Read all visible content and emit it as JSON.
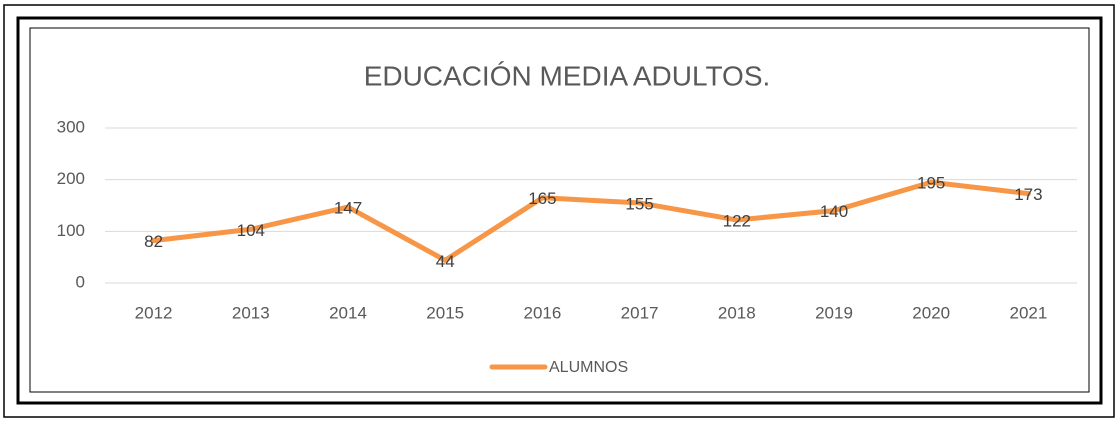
{
  "chart_data": {
    "type": "line",
    "title": "EDUCACIÓN MEDIA ADULTOS.",
    "categories": [
      "2012",
      "2013",
      "2014",
      "2015",
      "2016",
      "2017",
      "2018",
      "2019",
      "2020",
      "2021"
    ],
    "series": [
      {
        "name": "ALUMNOS",
        "color": "#f79646",
        "values": [
          82,
          104,
          147,
          44,
          165,
          155,
          122,
          140,
          195,
          173
        ]
      }
    ],
    "ylim": [
      0,
      300
    ],
    "yticks": [
      0,
      100,
      200,
      300
    ],
    "grid": true,
    "legend": "bottom",
    "data_labels": true
  }
}
